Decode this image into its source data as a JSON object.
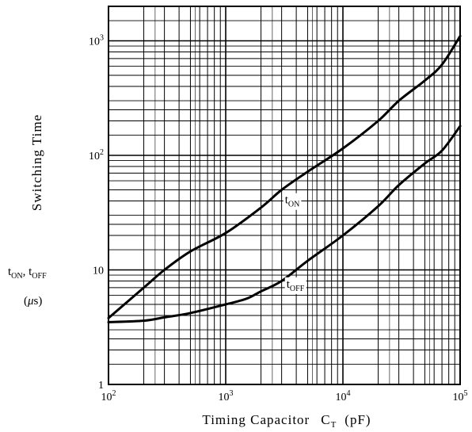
{
  "chart_data": {
    "type": "line",
    "x_scale": "log",
    "y_scale": "log",
    "xlim": [
      100,
      100000
    ],
    "ylim": [
      1,
      2000
    ],
    "grid": true,
    "x_ticks": [
      {
        "value": 100,
        "base": "10",
        "exp": "2"
      },
      {
        "value": 1000,
        "base": "10",
        "exp": "3"
      },
      {
        "value": 10000,
        "base": "10",
        "exp": "4"
      },
      {
        "value": 100000,
        "base": "10",
        "exp": "5"
      }
    ],
    "y_ticks": [
      {
        "value": 1,
        "base": "1",
        "exp": ""
      },
      {
        "value": 10,
        "base": "10",
        "exp": ""
      },
      {
        "value": 100,
        "base": "10",
        "exp": "2"
      },
      {
        "value": 1000,
        "base": "10",
        "exp": "3"
      }
    ],
    "xlabel": {
      "main": "Timing Capacitor",
      "sym": "C",
      "sub": "T",
      "unit": "(pF)"
    },
    "ylabel": {
      "title": "Switching Time",
      "t1": "t",
      "t1_sub": "ON",
      "sep": ", ",
      "t2": "t",
      "t2_sub": "OFF",
      "unit_open": "(",
      "unit_mu": "μ",
      "unit_rest": "s)"
    },
    "series": [
      {
        "name": "tON",
        "label_main": "t",
        "label_sub": "ON",
        "label_at": [
          3200,
          38
        ],
        "points": [
          [
            100,
            3.8
          ],
          [
            200,
            7
          ],
          [
            300,
            10
          ],
          [
            500,
            14.5
          ],
          [
            1000,
            21
          ],
          [
            2000,
            35
          ],
          [
            3000,
            50
          ],
          [
            5000,
            72
          ],
          [
            10000,
            115
          ],
          [
            20000,
            200
          ],
          [
            30000,
            300
          ],
          [
            50000,
            450
          ],
          [
            70000,
            620
          ],
          [
            100000,
            1100
          ]
        ]
      },
      {
        "name": "tOFF",
        "label_main": "t",
        "label_sub": "OFF",
        "label_at": [
          3300,
          7
        ],
        "points": [
          [
            100,
            3.5
          ],
          [
            200,
            3.6
          ],
          [
            300,
            3.85
          ],
          [
            500,
            4.2
          ],
          [
            1000,
            5
          ],
          [
            1500,
            5.6
          ],
          [
            2000,
            6.5
          ],
          [
            3000,
            8
          ],
          [
            5000,
            12
          ],
          [
            10000,
            20
          ],
          [
            20000,
            36
          ],
          [
            30000,
            55
          ],
          [
            50000,
            85
          ],
          [
            70000,
            110
          ],
          [
            100000,
            180
          ]
        ]
      }
    ]
  }
}
